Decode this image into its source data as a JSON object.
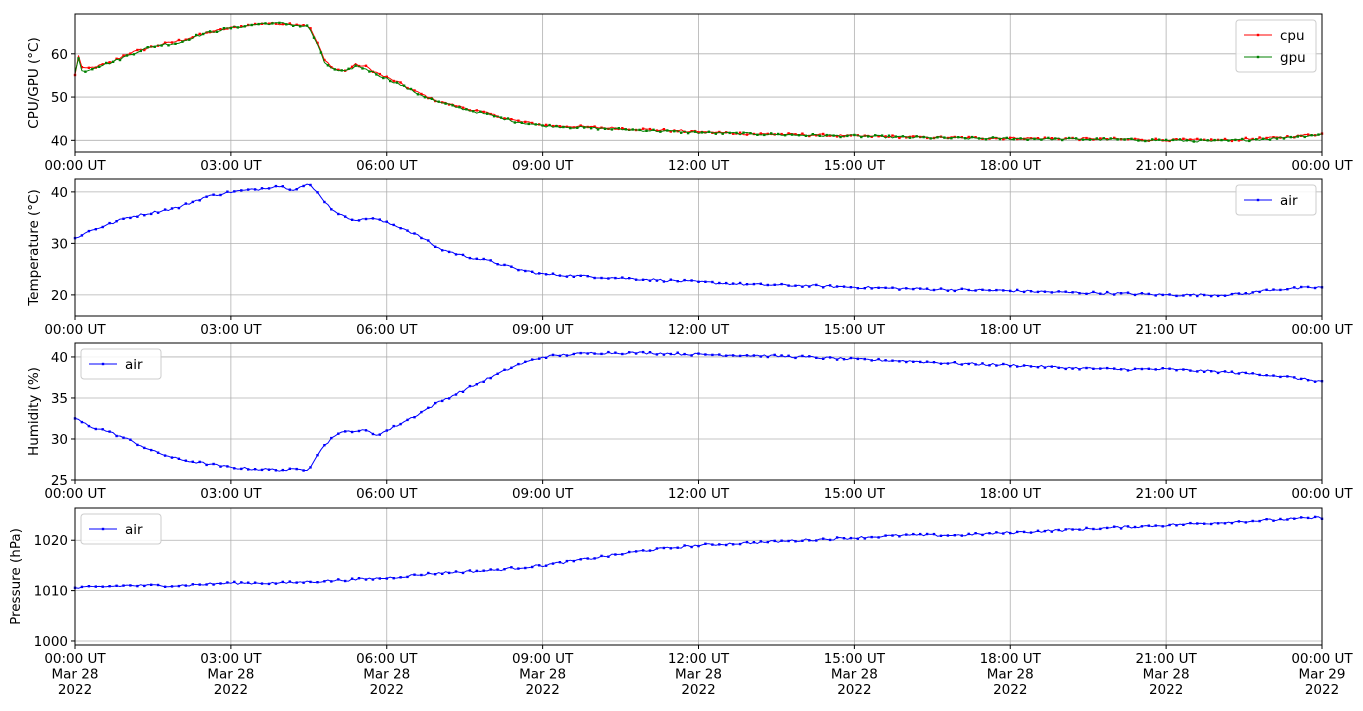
{
  "chart_data": [
    {
      "type": "line",
      "ylabel": "CPU/GPU (°C)",
      "xlabel": "",
      "x_range": [
        "2022-03-28T00:00Z",
        "2022-03-29T00:00Z"
      ],
      "x_tick_labels": [
        "00:00 UT",
        "03:00 UT",
        "06:00 UT",
        "09:00 UT",
        "12:00 UT",
        "15:00 UT",
        "18:00 UT",
        "21:00 UT",
        "00:00 UT"
      ],
      "ylim": [
        37.3,
        69.2
      ],
      "y_ticks": [
        40,
        50,
        60
      ],
      "y_tick_labels": [
        "40",
        "50",
        "60"
      ],
      "grid": true,
      "legend_position": "upper right",
      "x_hours": [
        0,
        0.05,
        0.1,
        0.2,
        0.4,
        0.7,
        1.0,
        1.3,
        1.6,
        2.0,
        2.3,
        2.6,
        3.0,
        3.3,
        3.6,
        4.0,
        4.3,
        4.5,
        4.65,
        4.8,
        5.0,
        5.2,
        5.4,
        5.6,
        5.9,
        6.2,
        6.6,
        7.0,
        7.5,
        8.0,
        8.5,
        9.0,
        10.0,
        11.0,
        12.0,
        13.0,
        14.0,
        15.0,
        16.0,
        17.0,
        18.0,
        19.0,
        20.0,
        21.0,
        22.0,
        23.0,
        24.0
      ],
      "series": [
        {
          "name": "cpu",
          "color": "#ff0000",
          "values": [
            55,
            61,
            57,
            56.5,
            57,
            58,
            60,
            61,
            62,
            63,
            64,
            65,
            66,
            66.5,
            67,
            67,
            66.8,
            66.5,
            63,
            58.5,
            56.5,
            56,
            57.5,
            57,
            55,
            53.5,
            51,
            49,
            47.5,
            46,
            44.5,
            43.5,
            43,
            42.5,
            42,
            41.5,
            41.3,
            41,
            40.8,
            40.6,
            40.5,
            40.4,
            40.3,
            40.1,
            40.0,
            40.5,
            41.5
          ]
        },
        {
          "name": "gpu",
          "color": "#008000",
          "values": [
            55.5,
            60,
            56.5,
            56,
            57,
            58,
            59.5,
            61,
            62,
            62.5,
            64,
            65,
            66,
            66.5,
            67,
            67,
            66.5,
            66.3,
            62.5,
            58,
            56.2,
            55.8,
            57.2,
            56.5,
            54.8,
            53.2,
            50.8,
            48.8,
            47.2,
            45.8,
            44.3,
            43.4,
            42.8,
            42.3,
            41.8,
            41.5,
            41.2,
            41,
            40.7,
            40.5,
            40.4,
            40.3,
            40.2,
            40.0,
            39.8,
            40.4,
            41.4
          ]
        }
      ]
    },
    {
      "type": "line",
      "ylabel": "Temperature (°C)",
      "xlabel": "",
      "x_range": [
        "2022-03-28T00:00Z",
        "2022-03-29T00:00Z"
      ],
      "x_tick_labels": [
        "00:00 UT",
        "03:00 UT",
        "06:00 UT",
        "09:00 UT",
        "12:00 UT",
        "15:00 UT",
        "18:00 UT",
        "21:00 UT",
        "00:00 UT"
      ],
      "ylim": [
        15.9,
        42.5
      ],
      "y_ticks": [
        20,
        30,
        40
      ],
      "y_tick_labels": [
        "20",
        "30",
        "40"
      ],
      "grid": true,
      "legend_position": "upper right",
      "x_hours": [
        0,
        0.3,
        0.6,
        1.0,
        1.5,
        2.0,
        2.5,
        3.0,
        3.5,
        3.9,
        4.2,
        4.5,
        4.7,
        4.9,
        5.2,
        5.5,
        5.7,
        6.0,
        6.3,
        6.7,
        7.0,
        7.5,
        8.0,
        8.5,
        9.0,
        10.0,
        11.0,
        12.0,
        13.0,
        14.0,
        15.0,
        16.0,
        17.0,
        18.0,
        19.0,
        20.0,
        21.0,
        22.0,
        22.5,
        23.0,
        24.0
      ],
      "series": [
        {
          "name": "air",
          "color": "#0000ff",
          "values": [
            31,
            32.5,
            33.5,
            35,
            36,
            37,
            39,
            40,
            40.5,
            41.2,
            40.5,
            41.5,
            39.5,
            37,
            35,
            34.5,
            35,
            34,
            33,
            31,
            29,
            27.5,
            26.5,
            25,
            24,
            23.5,
            23,
            22.5,
            22,
            21.8,
            21.5,
            21.2,
            21,
            20.8,
            20.5,
            20.3,
            20,
            20,
            20.2,
            21,
            21.5
          ]
        }
      ]
    },
    {
      "type": "line",
      "ylabel": "Humidity (%)",
      "xlabel": "",
      "x_range": [
        "2022-03-28T00:00Z",
        "2022-03-29T00:00Z"
      ],
      "x_tick_labels": [
        "00:00 UT",
        "03:00 UT",
        "06:00 UT",
        "09:00 UT",
        "12:00 UT",
        "15:00 UT",
        "18:00 UT",
        "21:00 UT",
        "00:00 UT"
      ],
      "ylim": [
        25,
        41.7
      ],
      "y_ticks": [
        25,
        30,
        35,
        40
      ],
      "y_tick_labels": [
        "25",
        "30",
        "35",
        "40"
      ],
      "grid": true,
      "legend_position": "upper left",
      "x_hours": [
        0,
        0.3,
        0.6,
        1.0,
        1.5,
        2.0,
        2.5,
        3.0,
        3.5,
        4.0,
        4.5,
        4.7,
        5.0,
        5.3,
        5.6,
        5.8,
        6.0,
        6.3,
        6.6,
        7.0,
        7.5,
        8.0,
        8.5,
        9.0,
        9.5,
        10.0,
        10.5,
        11.0,
        12.0,
        13.0,
        14.0,
        15.0,
        16.0,
        17.0,
        18.0,
        19.0,
        20.0,
        21.0,
        22.0,
        23.0,
        24.0
      ],
      "series": [
        {
          "name": "air",
          "color": "#0000ff",
          "values": [
            32.5,
            31.5,
            31,
            30,
            28.5,
            27.5,
            27,
            26.5,
            26.3,
            26.2,
            26.3,
            28.5,
            30.5,
            31,
            31,
            30.5,
            31,
            32,
            33,
            34.5,
            36,
            37.5,
            39,
            40,
            40.3,
            40.5,
            40.5,
            40.5,
            40.3,
            40.2,
            40,
            39.7,
            39.5,
            39.2,
            39,
            38.7,
            38.5,
            38.5,
            38.2,
            37.8,
            37
          ]
        }
      ]
    },
    {
      "type": "line",
      "ylabel": "Pressure (hPa)",
      "xlabel": "",
      "x_range": [
        "2022-03-28T00:00Z",
        "2022-03-29T00:00Z"
      ],
      "x_tick_labels": [
        "00:00 UT\nMar 28\n2022",
        "03:00 UT\nMar 28\n2022",
        "06:00 UT\nMar 28\n2022",
        "09:00 UT\nMar 28\n2022",
        "12:00 UT\nMar 28\n2022",
        "15:00 UT\nMar 28\n2022",
        "18:00 UT\nMar 28\n2022",
        "21:00 UT\nMar 28\n2022",
        "00:00 UT\nMar 29\n2022"
      ],
      "ylim": [
        999.2,
        1026.4
      ],
      "y_ticks": [
        1000,
        1010,
        1020
      ],
      "y_tick_labels": [
        "1000",
        "1010",
        "1020"
      ],
      "grid": true,
      "legend_position": "upper left",
      "x_hours": [
        0,
        1,
        2,
        3,
        4,
        5,
        6,
        7,
        8,
        9,
        10,
        11,
        12,
        13,
        14,
        15,
        16,
        17,
        18,
        19,
        20,
        21,
        22,
        23,
        24
      ],
      "series": [
        {
          "name": "air",
          "color": "#0000ff",
          "values": [
            1010.5,
            1011,
            1011,
            1011.5,
            1011.5,
            1012,
            1012.5,
            1013.5,
            1014,
            1015,
            1016.5,
            1018,
            1019,
            1019.5,
            1020,
            1020.5,
            1021,
            1021,
            1021.5,
            1022,
            1022.5,
            1023,
            1023.5,
            1024,
            1024.5
          ]
        }
      ]
    }
  ]
}
